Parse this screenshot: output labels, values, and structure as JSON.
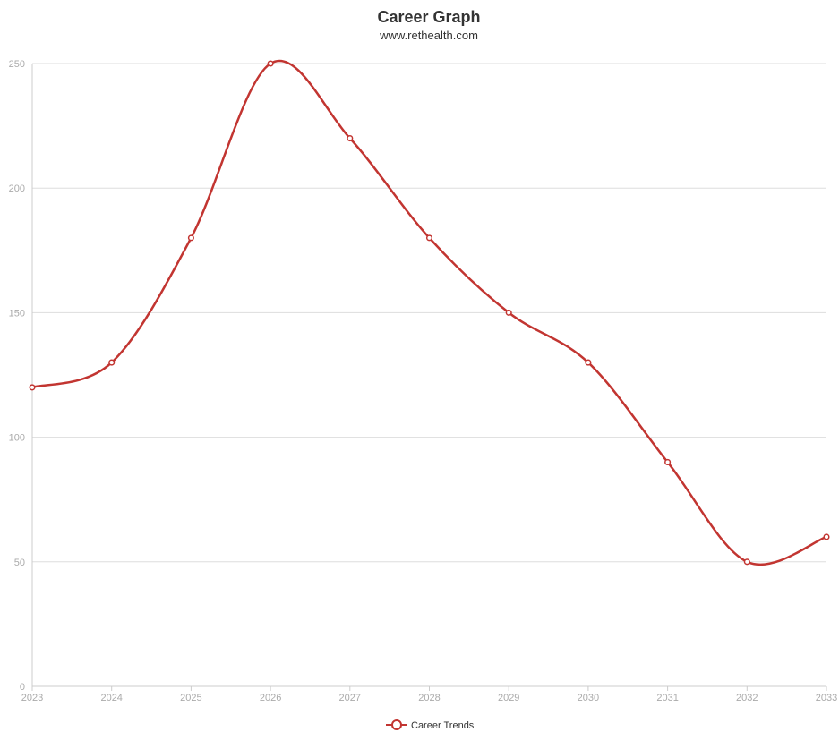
{
  "chart_data": {
    "type": "line",
    "title": "Career Graph",
    "subtitle": "www.rethealth.com",
    "x": [
      "2023",
      "2024",
      "2025",
      "2026",
      "2027",
      "2028",
      "2029",
      "2030",
      "2031",
      "2032",
      "2033"
    ],
    "series": [
      {
        "name": "Career Trends",
        "values": [
          120,
          130,
          180,
          250,
          220,
          180,
          150,
          130,
          90,
          50,
          60
        ]
      }
    ],
    "ylim": [
      0,
      250
    ],
    "yticks": [
      0,
      50,
      100,
      150,
      200,
      250
    ],
    "smooth": true,
    "grid": true,
    "legend": "bottom-center",
    "colors": {
      "series": "#c23531",
      "grid": "#dddddd",
      "axis": "#cccccc",
      "tick_text": "#aaaaaa",
      "title": "#333333"
    }
  }
}
